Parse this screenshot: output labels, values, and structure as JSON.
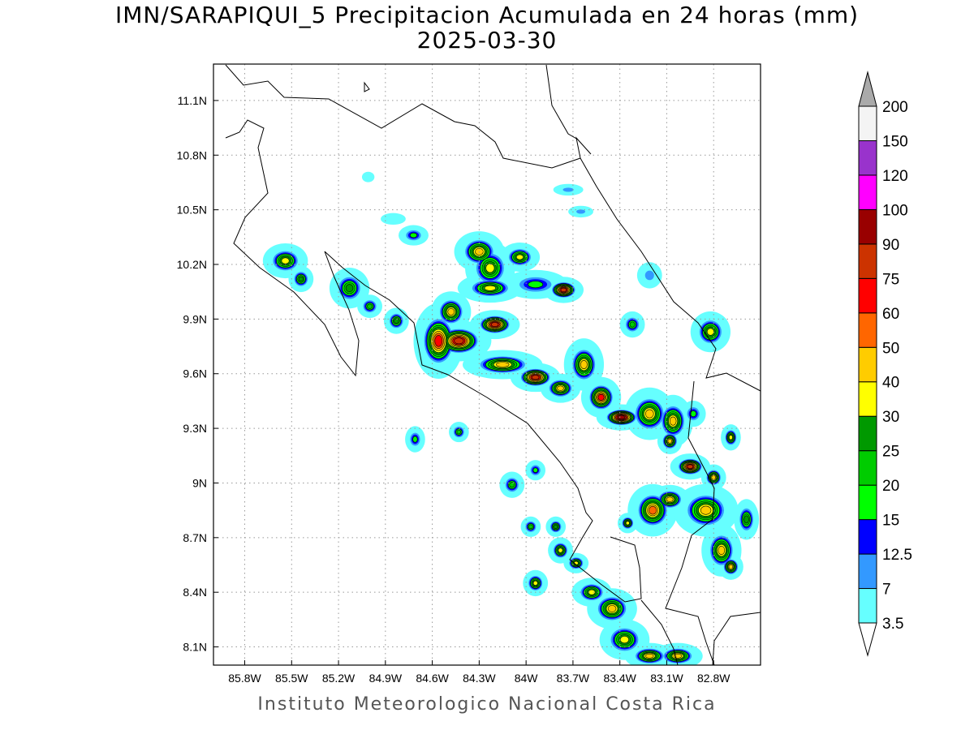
{
  "title": "IMN/SARAPIQUI_5 Precipitacion Acumulada en 24 horas (mm)",
  "date": "2025-03-30",
  "credit": "Instituto Meteorologico Nacional Costa Rica",
  "map": {
    "extent": {
      "lon_west": -86.0,
      "lon_east": -82.5,
      "lat_south": 8.0,
      "lat_north": 11.3
    },
    "lon_ticks": [
      {
        "v": -85.8,
        "label": "85.8W"
      },
      {
        "v": -85.5,
        "label": "85.5W"
      },
      {
        "v": -85.2,
        "label": "85.2W"
      },
      {
        "v": -84.9,
        "label": "84.9W"
      },
      {
        "v": -84.6,
        "label": "84.6W"
      },
      {
        "v": -84.3,
        "label": "84.3W"
      },
      {
        "v": -84.0,
        "label": "84W"
      },
      {
        "v": -83.7,
        "label": "83.7W"
      },
      {
        "v": -83.4,
        "label": "83.4W"
      },
      {
        "v": -83.1,
        "label": "83.1W"
      },
      {
        "v": -82.8,
        "label": "82.8W"
      }
    ],
    "lat_ticks": [
      {
        "v": 11.1,
        "label": "11.1N"
      },
      {
        "v": 10.8,
        "label": "10.8N"
      },
      {
        "v": 10.5,
        "label": "10.5N"
      },
      {
        "v": 10.2,
        "label": "10.2N"
      },
      {
        "v": 9.9,
        "label": "9.9N"
      },
      {
        "v": 9.6,
        "label": "9.6N"
      },
      {
        "v": 9.3,
        "label": "9.3N"
      },
      {
        "v": 9.0,
        "label": "9N"
      },
      {
        "v": 8.7,
        "label": "8.7N"
      },
      {
        "v": 8.4,
        "label": "8.4N"
      },
      {
        "v": 8.1,
        "label": "8.1N"
      }
    ],
    "grid": true,
    "precip_cells": [
      {
        "lon": -85.54,
        "lat": 10.22,
        "dlon": 0.09,
        "dlat": 0.06,
        "max_mm": 30
      },
      {
        "lon": -85.44,
        "lat": 10.12,
        "dlon": 0.05,
        "dlat": 0.045,
        "max_mm": 25
      },
      {
        "lon": -85.13,
        "lat": 10.07,
        "dlon": 0.08,
        "dlat": 0.07,
        "max_mm": 25
      },
      {
        "lon": -85.0,
        "lat": 9.97,
        "dlon": 0.05,
        "dlat": 0.04,
        "max_mm": 20
      },
      {
        "lon": -84.83,
        "lat": 9.89,
        "dlon": 0.05,
        "dlat": 0.045,
        "max_mm": 25
      },
      {
        "lon": -84.72,
        "lat": 10.36,
        "dlon": 0.06,
        "dlat": 0.035,
        "max_mm": 15
      },
      {
        "lon": -84.56,
        "lat": 9.78,
        "dlon": 0.1,
        "dlat": 0.13,
        "max_mm": 60
      },
      {
        "lon": -84.48,
        "lat": 9.94,
        "dlon": 0.08,
        "dlat": 0.07,
        "max_mm": 40
      },
      {
        "lon": -84.43,
        "lat": 9.78,
        "dlon": 0.13,
        "dlat": 0.07,
        "max_mm": 75
      },
      {
        "lon": -84.3,
        "lat": 10.27,
        "dlon": 0.1,
        "dlat": 0.07,
        "max_mm": 40
      },
      {
        "lon": -84.23,
        "lat": 10.18,
        "dlon": 0.1,
        "dlat": 0.09,
        "max_mm": 30
      },
      {
        "lon": -84.23,
        "lat": 10.07,
        "dlon": 0.13,
        "dlat": 0.05,
        "max_mm": 30
      },
      {
        "lon": -84.04,
        "lat": 10.24,
        "dlon": 0.08,
        "dlat": 0.05,
        "max_mm": 30
      },
      {
        "lon": -84.2,
        "lat": 9.87,
        "dlon": 0.1,
        "dlat": 0.05,
        "max_mm": 75
      },
      {
        "lon": -83.94,
        "lat": 10.09,
        "dlon": 0.13,
        "dlat": 0.05,
        "max_mm": 15
      },
      {
        "lon": -83.76,
        "lat": 10.06,
        "dlon": 0.08,
        "dlat": 0.045,
        "max_mm": 75
      },
      {
        "lon": -84.15,
        "lat": 9.65,
        "dlon": 0.16,
        "dlat": 0.05,
        "max_mm": 40
      },
      {
        "lon": -83.94,
        "lat": 9.58,
        "dlon": 0.1,
        "dlat": 0.05,
        "max_mm": 75
      },
      {
        "lon": -83.78,
        "lat": 9.52,
        "dlon": 0.08,
        "dlat": 0.05,
        "max_mm": 40
      },
      {
        "lon": -83.63,
        "lat": 9.65,
        "dlon": 0.08,
        "dlat": 0.09,
        "max_mm": 40
      },
      {
        "lon": -83.52,
        "lat": 9.47,
        "dlon": 0.08,
        "dlat": 0.07,
        "max_mm": 60
      },
      {
        "lon": -83.39,
        "lat": 9.36,
        "dlon": 0.1,
        "dlat": 0.045,
        "max_mm": 90
      },
      {
        "lon": -83.21,
        "lat": 9.38,
        "dlon": 0.1,
        "dlat": 0.09,
        "max_mm": 40
      },
      {
        "lon": -83.06,
        "lat": 9.34,
        "dlon": 0.08,
        "dlat": 0.09,
        "max_mm": 40
      },
      {
        "lon": -83.08,
        "lat": 9.23,
        "dlon": 0.05,
        "dlat": 0.045,
        "max_mm": 40
      },
      {
        "lon": -82.95,
        "lat": 9.09,
        "dlon": 0.08,
        "dlat": 0.045,
        "max_mm": 75
      },
      {
        "lon": -82.82,
        "lat": 9.83,
        "dlon": 0.08,
        "dlat": 0.07,
        "max_mm": 30
      },
      {
        "lon": -83.32,
        "lat": 9.87,
        "dlon": 0.05,
        "dlat": 0.045,
        "max_mm": 20
      },
      {
        "lon": -82.8,
        "lat": 9.03,
        "dlon": 0.05,
        "dlat": 0.045,
        "max_mm": 40
      },
      {
        "lon": -83.19,
        "lat": 8.85,
        "dlon": 0.1,
        "dlat": 0.09,
        "max_mm": 50
      },
      {
        "lon": -83.08,
        "lat": 8.91,
        "dlon": 0.08,
        "dlat": 0.05,
        "max_mm": 40
      },
      {
        "lon": -82.85,
        "lat": 8.85,
        "dlon": 0.13,
        "dlat": 0.09,
        "max_mm": 40
      },
      {
        "lon": -82.75,
        "lat": 8.63,
        "dlon": 0.08,
        "dlat": 0.09,
        "max_mm": 40
      },
      {
        "lon": -82.69,
        "lat": 8.54,
        "dlon": 0.05,
        "dlat": 0.045,
        "max_mm": 40
      },
      {
        "lon": -82.59,
        "lat": 8.8,
        "dlon": 0.05,
        "dlat": 0.07,
        "max_mm": 25
      },
      {
        "lon": -82.69,
        "lat": 9.25,
        "dlon": 0.04,
        "dlat": 0.045,
        "max_mm": 30
      },
      {
        "lon": -83.45,
        "lat": 8.31,
        "dlon": 0.1,
        "dlat": 0.07,
        "max_mm": 40
      },
      {
        "lon": -83.58,
        "lat": 8.4,
        "dlon": 0.08,
        "dlat": 0.05,
        "max_mm": 30
      },
      {
        "lon": -83.37,
        "lat": 8.14,
        "dlon": 0.1,
        "dlat": 0.07,
        "max_mm": 30
      },
      {
        "lon": -83.21,
        "lat": 8.05,
        "dlon": 0.1,
        "dlat": 0.045,
        "max_mm": 40
      },
      {
        "lon": -83.03,
        "lat": 8.05,
        "dlon": 0.1,
        "dlat": 0.045,
        "max_mm": 40
      },
      {
        "lon": -83.78,
        "lat": 8.63,
        "dlon": 0.05,
        "dlat": 0.045,
        "max_mm": 30
      },
      {
        "lon": -83.81,
        "lat": 8.76,
        "dlon": 0.04,
        "dlat": 0.035,
        "max_mm": 25
      },
      {
        "lon": -83.94,
        "lat": 8.45,
        "dlon": 0.05,
        "dlat": 0.045,
        "max_mm": 30
      },
      {
        "lon": -84.09,
        "lat": 8.99,
        "dlon": 0.05,
        "dlat": 0.045,
        "max_mm": 20
      },
      {
        "lon": -83.97,
        "lat": 8.76,
        "dlon": 0.04,
        "dlat": 0.035,
        "max_mm": 20
      },
      {
        "lon": -84.43,
        "lat": 9.28,
        "dlon": 0.04,
        "dlat": 0.035,
        "max_mm": 20
      },
      {
        "lon": -84.71,
        "lat": 9.24,
        "dlon": 0.04,
        "dlat": 0.045,
        "max_mm": 15
      },
      {
        "lon": -83.94,
        "lat": 9.07,
        "dlon": 0.04,
        "dlat": 0.035,
        "max_mm": 15
      },
      {
        "lon": -83.35,
        "lat": 8.78,
        "dlon": 0.04,
        "dlat": 0.035,
        "max_mm": 30
      },
      {
        "lon": -83.68,
        "lat": 8.56,
        "dlon": 0.05,
        "dlat": 0.035,
        "max_mm": 30
      },
      {
        "lon": -82.93,
        "lat": 9.38,
        "dlon": 0.05,
        "dlat": 0.045,
        "max_mm": 15
      },
      {
        "lon": -83.21,
        "lat": 10.14,
        "dlon": 0.05,
        "dlat": 0.045,
        "max_mm": 7
      },
      {
        "lon": -83.73,
        "lat": 10.61,
        "dlon": 0.06,
        "dlat": 0.02,
        "max_mm": 7
      },
      {
        "lon": -83.65,
        "lat": 10.49,
        "dlon": 0.05,
        "dlat": 0.02,
        "max_mm": 7
      },
      {
        "lon": -85.01,
        "lat": 10.68,
        "dlon": 0.025,
        "dlat": 0.018,
        "max_mm": 3.5
      },
      {
        "lon": -84.85,
        "lat": 10.45,
        "dlon": 0.05,
        "dlat": 0.02,
        "max_mm": 3.5
      }
    ]
  },
  "colorbar": {
    "levels": [
      {
        "value": "3.5",
        "min": 3.5,
        "color": "#66ffff"
      },
      {
        "value": "7",
        "min": 7,
        "color": "#3399ff"
      },
      {
        "value": "12.5",
        "min": 12.5,
        "color": "#0000ff"
      },
      {
        "value": "15",
        "min": 15,
        "color": "#00ff00"
      },
      {
        "value": "20",
        "min": 20,
        "color": "#00cc00"
      },
      {
        "value": "25",
        "min": 25,
        "color": "#009900"
      },
      {
        "value": "30",
        "min": 30,
        "color": "#ffff00"
      },
      {
        "value": "40",
        "min": 40,
        "color": "#ffcc00"
      },
      {
        "value": "50",
        "min": 50,
        "color": "#ff6600"
      },
      {
        "value": "60",
        "min": 60,
        "color": "#ff0000"
      },
      {
        "value": "75",
        "min": 75,
        "color": "#cc3300"
      },
      {
        "value": "90",
        "min": 90,
        "color": "#990000"
      },
      {
        "value": "100",
        "min": 100,
        "color": "#ff00ff"
      },
      {
        "value": "120",
        "min": 120,
        "color": "#9933cc"
      },
      {
        "value": "150",
        "min": 150,
        "color": "#f4f4f4"
      },
      {
        "value": "200",
        "min": 200,
        "color": "#aaaaaa"
      }
    ],
    "under_color": "#ffffff",
    "over_color": "#aaaaaa"
  }
}
